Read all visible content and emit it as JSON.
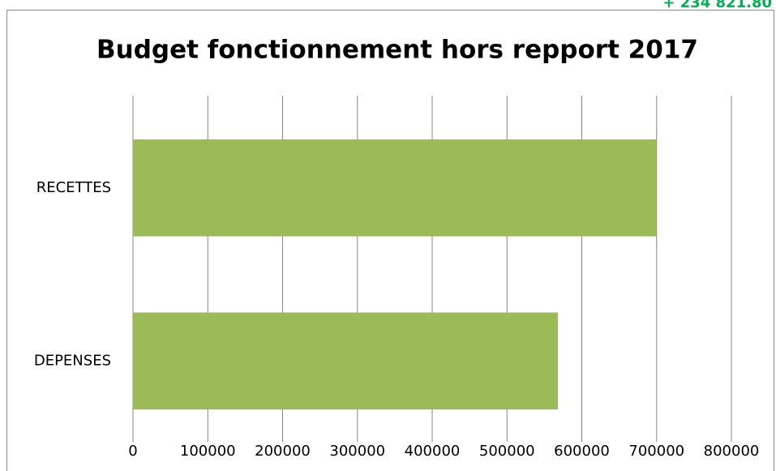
{
  "chart_data": {
    "type": "hbar",
    "title": "Budget fonctionnement hors repport 2017",
    "annotation": "+ 234 821.80",
    "categories": [
      "RECETTES",
      "DEPENSES"
    ],
    "values": [
      700000,
      568000
    ],
    "color": "#9bbb59",
    "xlim": [
      0,
      800000
    ],
    "xticks": [
      0,
      100000,
      200000,
      300000,
      400000,
      500000,
      600000,
      700000,
      800000
    ],
    "grid": true
  }
}
